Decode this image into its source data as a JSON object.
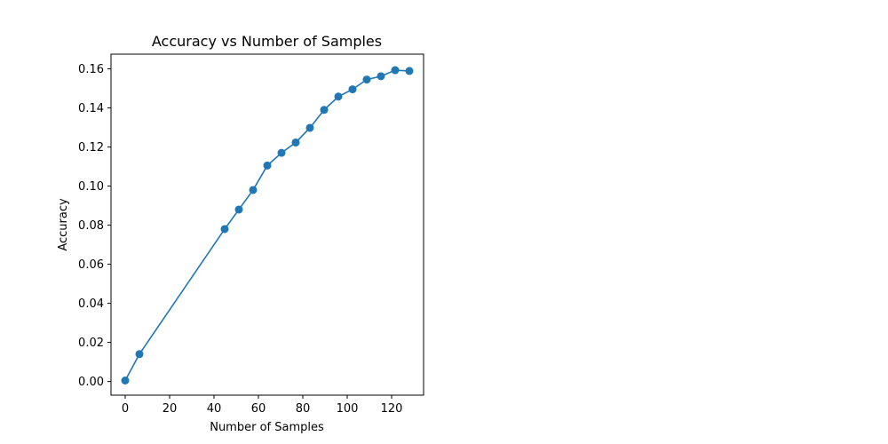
{
  "chart_data": {
    "type": "line",
    "title": "Accuracy vs Number of Samples",
    "xlabel": "Number of Samples",
    "ylabel": "Accuracy",
    "xlim": [
      -6.4,
      134.4
    ],
    "ylim": [
      -0.007,
      0.1675
    ],
    "x_ticks": [
      0,
      20,
      40,
      60,
      80,
      100,
      120
    ],
    "y_ticks": [
      0.0,
      0.02,
      0.04,
      0.06,
      0.08,
      0.1,
      0.12,
      0.14,
      0.16
    ],
    "y_tick_labels": [
      "0.00",
      "0.02",
      "0.04",
      "0.06",
      "0.08",
      "0.10",
      "0.12",
      "0.14",
      "0.16"
    ],
    "grid": false,
    "series": [
      {
        "color": "#1f77b4",
        "marker": "circle",
        "x": [
          0,
          6.4,
          44.8,
          51.2,
          57.6,
          64,
          70.4,
          76.8,
          83.2,
          89.6,
          96,
          102.4,
          108.8,
          115.2,
          121.6,
          128
        ],
        "y": [
          0.0005,
          0.014,
          0.078,
          0.088,
          0.098,
          0.1105,
          0.117,
          0.1223,
          0.1298,
          0.139,
          0.1458,
          0.1495,
          0.1545,
          0.1562,
          0.1593,
          0.1589
        ]
      }
    ]
  }
}
